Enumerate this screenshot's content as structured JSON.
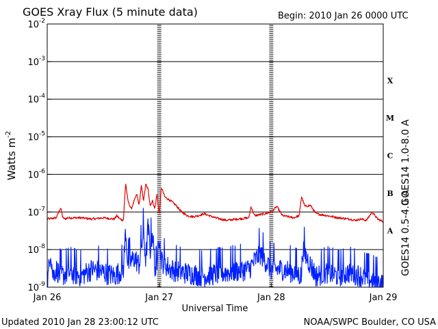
{
  "title": "GOES Xray Flux (5 minute data)",
  "begin": "Begin:  2010 Jan 26 0000 UTC",
  "updated": "Updated 2010 Jan 28 23:00:12 UTC",
  "source": "NOAA/SWPC Boulder, CO USA",
  "colors": {
    "long": "#e00000",
    "short": "#0020ff",
    "axis": "#000000"
  },
  "chart_data": {
    "type": "line",
    "title": "GOES Xray Flux (5 minute data)",
    "xlabel": "Universal Time",
    "ylabel_main": "Watts m",
    "ylabel_exp": "-2",
    "yscale": "log",
    "ylim": [
      1e-09,
      0.01
    ],
    "xlim": [
      "2010-01-26 00:00",
      "2010-01-29 00:00"
    ],
    "x_ticks": [
      "Jan 26",
      "Jan 27",
      "Jan 28",
      "Jan 29"
    ],
    "y_ticks": [
      {
        "base": "10",
        "exp": "-2"
      },
      {
        "base": "10",
        "exp": "-3"
      },
      {
        "base": "10",
        "exp": "-4"
      },
      {
        "base": "10",
        "exp": "-5"
      },
      {
        "base": "10",
        "exp": "-6"
      },
      {
        "base": "10",
        "exp": "-7"
      },
      {
        "base": "10",
        "exp": "-8"
      },
      {
        "base": "10",
        "exp": "-9"
      }
    ],
    "flare_classes": [
      "X",
      "M",
      "C",
      "B",
      "A"
    ],
    "grid": true,
    "series": [
      {
        "name": "GOES14 1.0-8.0 A",
        "color": "#e00000",
        "x_day": [
          0.0,
          0.08,
          0.12,
          0.14,
          0.16,
          0.18,
          0.3,
          0.4,
          0.5,
          0.6,
          0.62,
          0.65,
          0.68,
          0.7,
          0.72,
          0.75,
          0.8,
          0.82,
          0.84,
          0.86,
          0.88,
          0.9,
          0.92,
          0.94,
          0.96,
          0.98,
          1.0,
          1.02,
          1.05,
          1.1,
          1.15,
          1.2,
          1.25,
          1.3,
          1.35,
          1.4,
          1.5,
          1.6,
          1.7,
          1.8,
          1.82,
          1.85,
          1.9,
          1.95,
          2.0,
          2.05,
          2.1,
          2.15,
          2.2,
          2.25,
          2.27,
          2.3,
          2.35,
          2.4,
          2.5,
          2.6,
          2.7,
          2.75,
          2.8,
          2.85,
          2.9,
          2.95,
          3.0
        ],
        "y": [
          6.5e-08,
          7e-08,
          1.3e-07,
          7e-08,
          6.5e-08,
          7e-08,
          7e-08,
          6.5e-08,
          7e-08,
          6.5e-08,
          8e-08,
          6.5e-08,
          6e-08,
          6e-07,
          2e-07,
          1.2e-07,
          3e-07,
          1.5e-07,
          5e-07,
          2e-07,
          5.5e-07,
          4e-07,
          1.5e-07,
          2e-07,
          1.2e-07,
          3e-07,
          9e-08,
          4.5e-07,
          2.5e-07,
          2e-07,
          1.5e-07,
          1e-07,
          8e-08,
          7.5e-08,
          8e-08,
          9e-08,
          7e-08,
          6e-08,
          6.5e-08,
          7e-08,
          1.4e-07,
          8e-08,
          8.5e-08,
          9e-08,
          1e-07,
          1.4e-07,
          8e-08,
          7.5e-08,
          7e-08,
          8e-08,
          2.6e-07,
          1.4e-07,
          1.5e-07,
          9e-08,
          8e-08,
          7e-08,
          6.5e-08,
          6e-08,
          6.5e-08,
          6e-08,
          1e-07,
          6.5e-08,
          5.5e-08
        ]
      },
      {
        "name": "GOES14 0.5-4.0 A",
        "color": "#0020ff",
        "x_day": [
          0.0,
          0.02,
          0.03,
          0.05,
          0.08,
          0.12,
          0.2,
          0.3,
          0.4,
          0.5,
          0.6,
          0.68,
          0.7,
          0.72,
          0.78,
          0.82,
          0.86,
          0.88,
          0.9,
          0.92,
          0.94,
          0.96,
          0.98,
          0.99,
          1.02,
          1.1,
          1.2,
          1.4,
          1.6,
          1.8,
          1.9,
          2.0,
          2.1,
          2.2,
          2.27,
          2.28,
          2.4,
          2.5,
          2.6,
          2.7,
          2.8,
          2.9,
          3.0
        ],
        "y": [
          1e-09,
          5e-09,
          1e-08,
          2e-09,
          3e-09,
          2e-09,
          2.5e-09,
          2e-09,
          3e-09,
          2.5e-09,
          2e-09,
          3e-09,
          3.5e-08,
          4e-09,
          6e-09,
          4e-09,
          3e-08,
          5e-09,
          4e-08,
          1e-08,
          3e-08,
          4e-09,
          2e-09,
          3.5e-08,
          5e-09,
          3e-09,
          2.5e-09,
          2e-09,
          2.5e-09,
          3e-09,
          8e-09,
          3e-09,
          3e-09,
          2.5e-09,
          2e-09,
          1e-08,
          2e-09,
          2.5e-09,
          2e-09,
          2.5e-09,
          2e-09,
          1.5e-09,
          1.2e-09
        ]
      }
    ]
  }
}
